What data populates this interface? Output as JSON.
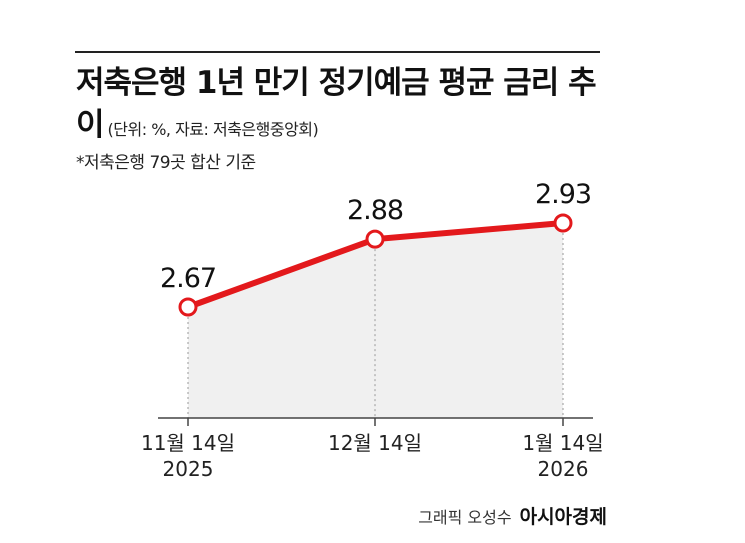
{
  "chart_data": {
    "type": "line",
    "title": "저축은행 1년 만기 정기예금 평균 금리 추이",
    "subtitle": "(단위: %, 자료: 저축은행중앙회)",
    "note": "*저축은행 79곳 합산 기준",
    "categories": [
      "11월 14일",
      "12월 14일",
      "1월 14일"
    ],
    "category_years": [
      "2025",
      null,
      "2026"
    ],
    "series": [
      {
        "name": "평균 금리",
        "color": "#e3191c",
        "values": [
          2.67,
          2.88,
          2.93
        ]
      }
    ],
    "credit": "그래픽 오성수",
    "source_brand": "아시아경제"
  }
}
